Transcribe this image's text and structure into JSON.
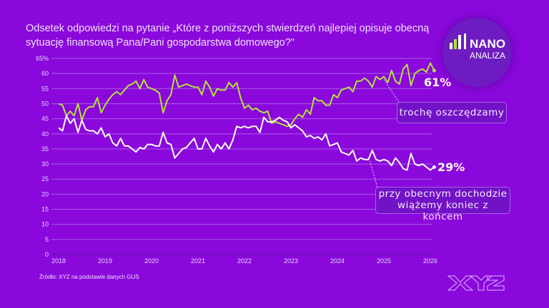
{
  "title": "Odsetek odpowiedzi na pytanie „Które z poniższych stwierdzeń najlepiej opisuje obecną sytuację finansową Pana/Pani gospodarstwa domowego?\"",
  "logo": {
    "line1": "NANO",
    "line2": "ANALIZA"
  },
  "source": "Źródło:  XYZ na podstawie danych GUS",
  "brand": "XYZ",
  "colors": {
    "background": "#8a08dc",
    "green": "#b5e23a",
    "white": "#ffffff",
    "grid": "#a85ce6"
  },
  "chart_data": {
    "type": "line",
    "title": "Odsetek odpowiedzi",
    "ylim": [
      0,
      65
    ],
    "yticks": [
      "0",
      "5",
      "10",
      "15",
      "20",
      "25",
      "30",
      "35",
      "40",
      "45",
      "50",
      "55",
      "60",
      "65%"
    ],
    "xlim": [
      2018,
      2026
    ],
    "xticks": [
      "2018",
      "2019",
      "2020",
      "2021",
      "2022",
      "2023",
      "2024",
      "2025",
      "2026"
    ],
    "x_start": 2018,
    "x_step_months": 1,
    "grid": true,
    "series": [
      {
        "name": "trochę oszczędzamy",
        "color": "#b5e23a",
        "end_label": "61%",
        "values": [
          50,
          49.5,
          46,
          47.5,
          46,
          50,
          44.5,
          48,
          49,
          49,
          52,
          47,
          49.5,
          51.5,
          53,
          54,
          53,
          54.5,
          56,
          56.5,
          57.5,
          55,
          58,
          55.5,
          55,
          54.5,
          53.5,
          47,
          51,
          53,
          59.5,
          55.5,
          56,
          56.5,
          56,
          55.5,
          55.5,
          53,
          57.5,
          55.5,
          52.5,
          55,
          54.5,
          54.5,
          57,
          55.5,
          57,
          52,
          48.5,
          49.5,
          48,
          48.5,
          47.5,
          47,
          47.5,
          43.5,
          44,
          43.5,
          43,
          42.5,
          43,
          45,
          46.5,
          45.5,
          48,
          46.5,
          52,
          51,
          51,
          49.5,
          49.5,
          53,
          52,
          54.5,
          55,
          55.5,
          54,
          57.5,
          57.5,
          58.5,
          57.5,
          55.5,
          59,
          58,
          59,
          57,
          61,
          57.5,
          56.5,
          61.5,
          63,
          56,
          60,
          61,
          61.5,
          60.5,
          63.5,
          61
        ]
      },
      {
        "name": "przy obecnym dochodzie wiążemy koniec z końcem",
        "color": "#ffffff",
        "end_label": "29%",
        "values": [
          42,
          41,
          46,
          43.5,
          45,
          40.5,
          44.5,
          41.5,
          41,
          41,
          40,
          42,
          39,
          40,
          37,
          36,
          38.5,
          36,
          36,
          35,
          34,
          35.5,
          35,
          36.5,
          36.5,
          36,
          36,
          40.5,
          37,
          36.5,
          32,
          33.5,
          35,
          35.5,
          37,
          38.5,
          35,
          35,
          38.5,
          36,
          34,
          36.5,
          35,
          37,
          35,
          38,
          42.5,
          42,
          42.5,
          42,
          42.5,
          42.5,
          40.5,
          45.5,
          44,
          44,
          44.5,
          45.5,
          44.5,
          44,
          42,
          43,
          42,
          41,
          39,
          39.5,
          38.5,
          39,
          38,
          40,
          36,
          36.5,
          37,
          34,
          33.5,
          33,
          34.5,
          31,
          32,
          31.5,
          31.5,
          34.5,
          31.5,
          31,
          31.5,
          31,
          29.5,
          32,
          30.5,
          28.5,
          28,
          33.5,
          30,
          29.5,
          30,
          29,
          28,
          29
        ]
      }
    ],
    "annotations": [
      "trochę oszczędzamy",
      "przy obecnym dochodzie",
      "wiążemy koniec z końcem"
    ]
  }
}
